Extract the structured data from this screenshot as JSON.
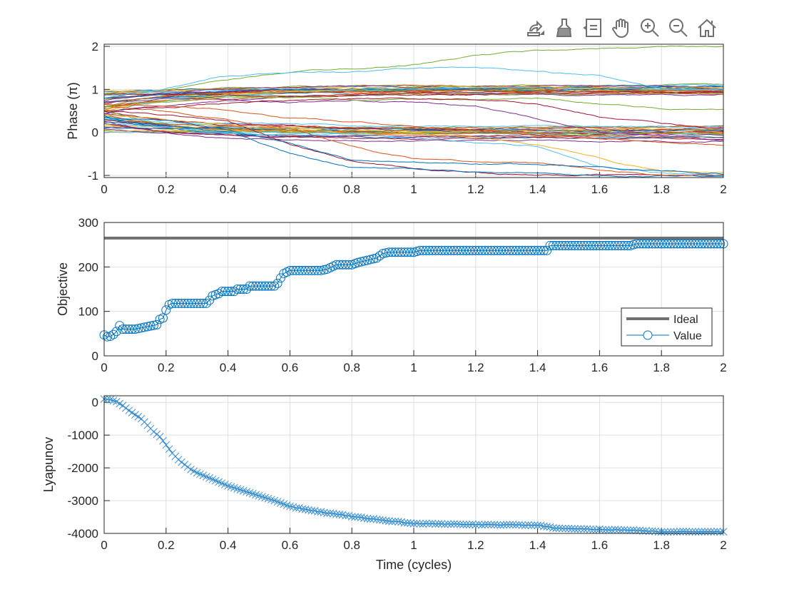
{
  "toolbar": {
    "icons": [
      "export-icon",
      "brush-icon",
      "data-tips-icon",
      "pan-icon",
      "zoom-in-icon",
      "zoom-out-icon",
      "home-icon"
    ]
  },
  "colors": {
    "series_palette": [
      "#0072BD",
      "#D95319",
      "#EDB120",
      "#7E2F8E",
      "#77AC30",
      "#4DBEEE",
      "#A2142F"
    ],
    "ideal": "#707070",
    "value": "#0072BD",
    "grid": "#dfdfdf",
    "axis": "#262626"
  },
  "chart_data": [
    {
      "id": "phase",
      "type": "line",
      "ylabel": "Phase (π)",
      "xlim": [
        0,
        2
      ],
      "ylim": [
        -1.05,
        2.05
      ],
      "xticks": [
        "0",
        "0.2",
        "0.4",
        "0.6",
        "0.8",
        "1",
        "1.2",
        "1.4",
        "1.6",
        "1.8",
        "2"
      ],
      "yticks": [
        "-1",
        "0",
        "1",
        "2"
      ],
      "ytick_values": [
        -1,
        0,
        1,
        2
      ],
      "grid": true,
      "x_samples": [
        0,
        0.2,
        0.4,
        0.6,
        0.8,
        1.0,
        1.2,
        1.4,
        1.6,
        1.8,
        2.0
      ],
      "explicit_lines": [
        [
          0.9,
          1.0,
          1.2,
          1.4,
          1.5,
          1.6,
          1.8,
          1.9,
          1.95,
          2.0,
          2.0
        ],
        [
          0.8,
          1.0,
          1.3,
          1.4,
          1.4,
          1.5,
          1.5,
          1.4,
          1.3,
          1.0,
          1.0
        ],
        [
          0.5,
          0.4,
          0.3,
          -0.3,
          -0.7,
          -0.9,
          -0.95,
          -1,
          -1,
          -1,
          -1
        ],
        [
          0.3,
          0.2,
          0.0,
          -0.5,
          -0.8,
          -0.85,
          -0.9,
          -0.95,
          -1,
          -1,
          -1
        ],
        [
          0.6,
          0.5,
          0.3,
          0.1,
          -0.3,
          -0.6,
          -0.7,
          -0.75,
          -0.9,
          -1,
          -1
        ],
        [
          0.4,
          0.3,
          0.2,
          0.1,
          0.0,
          0.0,
          -0.1,
          -0.3,
          -0.6,
          -0.9,
          -0.95
        ],
        [
          0.7,
          0.8,
          0.8,
          0.7,
          0.8,
          0.7,
          0.6,
          0.3,
          0.0,
          -0.1,
          -0.2
        ],
        [
          0.6,
          0.7,
          0.8,
          0.8,
          0.8,
          0.8,
          0.8,
          0.8,
          0.7,
          0.6,
          0.55
        ],
        [
          0.2,
          0.1,
          0.0,
          0.0,
          0.0,
          -0.1,
          -0.2,
          -0.3,
          -0.8,
          -0.95,
          -1
        ],
        [
          0.5,
          0.6,
          0.7,
          0.75,
          0.8,
          0.8,
          0.78,
          0.7,
          0.4,
          0.2,
          0.1
        ],
        [
          0.35,
          0.3,
          0.1,
          -0.2,
          -0.6,
          -0.65,
          -0.7,
          -0.75,
          -0.8,
          -0.9,
          -0.95
        ],
        [
          0.65,
          0.6,
          0.5,
          0.3,
          0.2,
          0.1,
          0.0,
          -0.1,
          -0.15,
          -0.25,
          -0.3
        ]
      ],
      "converging_lines_start_end": [
        [
          0.95,
          1.0
        ],
        [
          0.9,
          1.05
        ],
        [
          0.85,
          0.95
        ],
        [
          0.8,
          1.0
        ],
        [
          0.75,
          1.1
        ],
        [
          0.7,
          0.9
        ],
        [
          0.65,
          1.0
        ],
        [
          0.6,
          1.05
        ],
        [
          0.55,
          0.95
        ],
        [
          0.5,
          1.0
        ],
        [
          0.45,
          0.9
        ],
        [
          0.9,
          0.85
        ],
        [
          0.85,
          1.1
        ],
        [
          0.8,
          0.95
        ],
        [
          0.7,
          1.0
        ],
        [
          0.6,
          0.92
        ],
        [
          0.98,
          1.02
        ],
        [
          0.72,
          1.08
        ],
        [
          0.58,
          0.98
        ],
        [
          0.4,
          1.0
        ],
        [
          0.88,
          0.9
        ],
        [
          0.78,
          1.04
        ],
        [
          0.68,
          0.96
        ],
        [
          0.52,
          1.06
        ],
        [
          0.45,
          0.0
        ],
        [
          0.4,
          0.1
        ],
        [
          0.35,
          -0.05
        ],
        [
          0.3,
          0.0
        ],
        [
          0.25,
          0.05
        ],
        [
          0.2,
          -0.1
        ],
        [
          0.15,
          0.0
        ],
        [
          0.1,
          0.08
        ],
        [
          0.05,
          -0.02
        ],
        [
          0.0,
          0.0
        ],
        [
          0.5,
          0.05
        ],
        [
          0.38,
          -0.12
        ],
        [
          0.28,
          0.12
        ],
        [
          0.18,
          0.02
        ],
        [
          0.08,
          -0.08
        ],
        [
          0.55,
          0.0
        ],
        [
          0.32,
          0.15
        ],
        [
          0.22,
          -0.15
        ],
        [
          0.12,
          0.03
        ],
        [
          0.42,
          -0.03
        ],
        [
          0.02,
          0.06
        ],
        [
          0.26,
          -0.2
        ]
      ]
    },
    {
      "id": "objective",
      "type": "line",
      "ylabel": "Objective",
      "xlim": [
        0,
        2
      ],
      "ylim": [
        0,
        300
      ],
      "xticks": [
        "0",
        "0.2",
        "0.4",
        "0.6",
        "0.8",
        "1",
        "1.2",
        "1.4",
        "1.6",
        "1.8",
        "2"
      ],
      "yticks": [
        "0",
        "100",
        "200",
        "300"
      ],
      "ytick_values": [
        0,
        100,
        200,
        300
      ],
      "grid": true,
      "legend": {
        "position": "bottom-right",
        "entries": [
          "Ideal",
          "Value"
        ]
      },
      "ideal_value": 265,
      "value_keypoints": {
        "x": [
          0,
          0.01,
          0.02,
          0.03,
          0.04,
          0.05,
          0.06,
          0.1,
          0.17,
          0.18,
          0.19,
          0.2,
          0.21,
          0.22,
          0.33,
          0.34,
          0.35,
          0.37,
          0.38,
          0.42,
          0.43,
          0.46,
          0.47,
          0.55,
          0.56,
          0.57,
          0.58,
          0.6,
          0.7,
          0.72,
          0.75,
          0.8,
          0.82,
          0.85,
          0.88,
          0.9,
          0.92,
          1.0,
          1.02,
          1.43,
          1.44,
          1.7,
          1.72,
          2.0
        ],
        "y": [
          47,
          43,
          44,
          48,
          55,
          68,
          60,
          60,
          70,
          82,
          85,
          103,
          115,
          118,
          118,
          125,
          135,
          140,
          145,
          145,
          150,
          150,
          157,
          157,
          163,
          175,
          185,
          192,
          192,
          195,
          205,
          205,
          210,
          215,
          220,
          230,
          233,
          233,
          237,
          237,
          248,
          248,
          252,
          252
        ]
      },
      "value_step": 0.01
    },
    {
      "id": "lyapunov",
      "type": "line",
      "xlabel": "Time (cycles)",
      "ylabel": "Lyapunov",
      "xlim": [
        0,
        2
      ],
      "ylim": [
        -4000,
        200
      ],
      "xticks": [
        "0",
        "0.2",
        "0.4",
        "0.6",
        "0.8",
        "1",
        "1.2",
        "1.4",
        "1.6",
        "1.8",
        "2"
      ],
      "yticks": [
        "-4000",
        "-3000",
        "-2000",
        "-1000",
        "0"
      ],
      "ytick_values": [
        -4000,
        -3000,
        -2000,
        -1000,
        0
      ],
      "grid": true,
      "keypoints": {
        "x": [
          0,
          0.02,
          0.04,
          0.06,
          0.08,
          0.1,
          0.12,
          0.14,
          0.16,
          0.18,
          0.2,
          0.22,
          0.24,
          0.26,
          0.28,
          0.3,
          0.35,
          0.4,
          0.45,
          0.5,
          0.55,
          0.6,
          0.7,
          0.8,
          0.9,
          1.0,
          1.2,
          1.4,
          1.45,
          1.5,
          1.6,
          1.7,
          1.8,
          2.0
        ],
        "y": [
          100,
          80,
          20,
          -100,
          -250,
          -380,
          -500,
          -700,
          -900,
          -1050,
          -1300,
          -1550,
          -1750,
          -1900,
          -2050,
          -2150,
          -2350,
          -2550,
          -2700,
          -2850,
          -3000,
          -3180,
          -3350,
          -3480,
          -3600,
          -3700,
          -3730,
          -3750,
          -3830,
          -3860,
          -3880,
          -3900,
          -3950,
          -3950
        ]
      },
      "step": 0.01
    }
  ]
}
